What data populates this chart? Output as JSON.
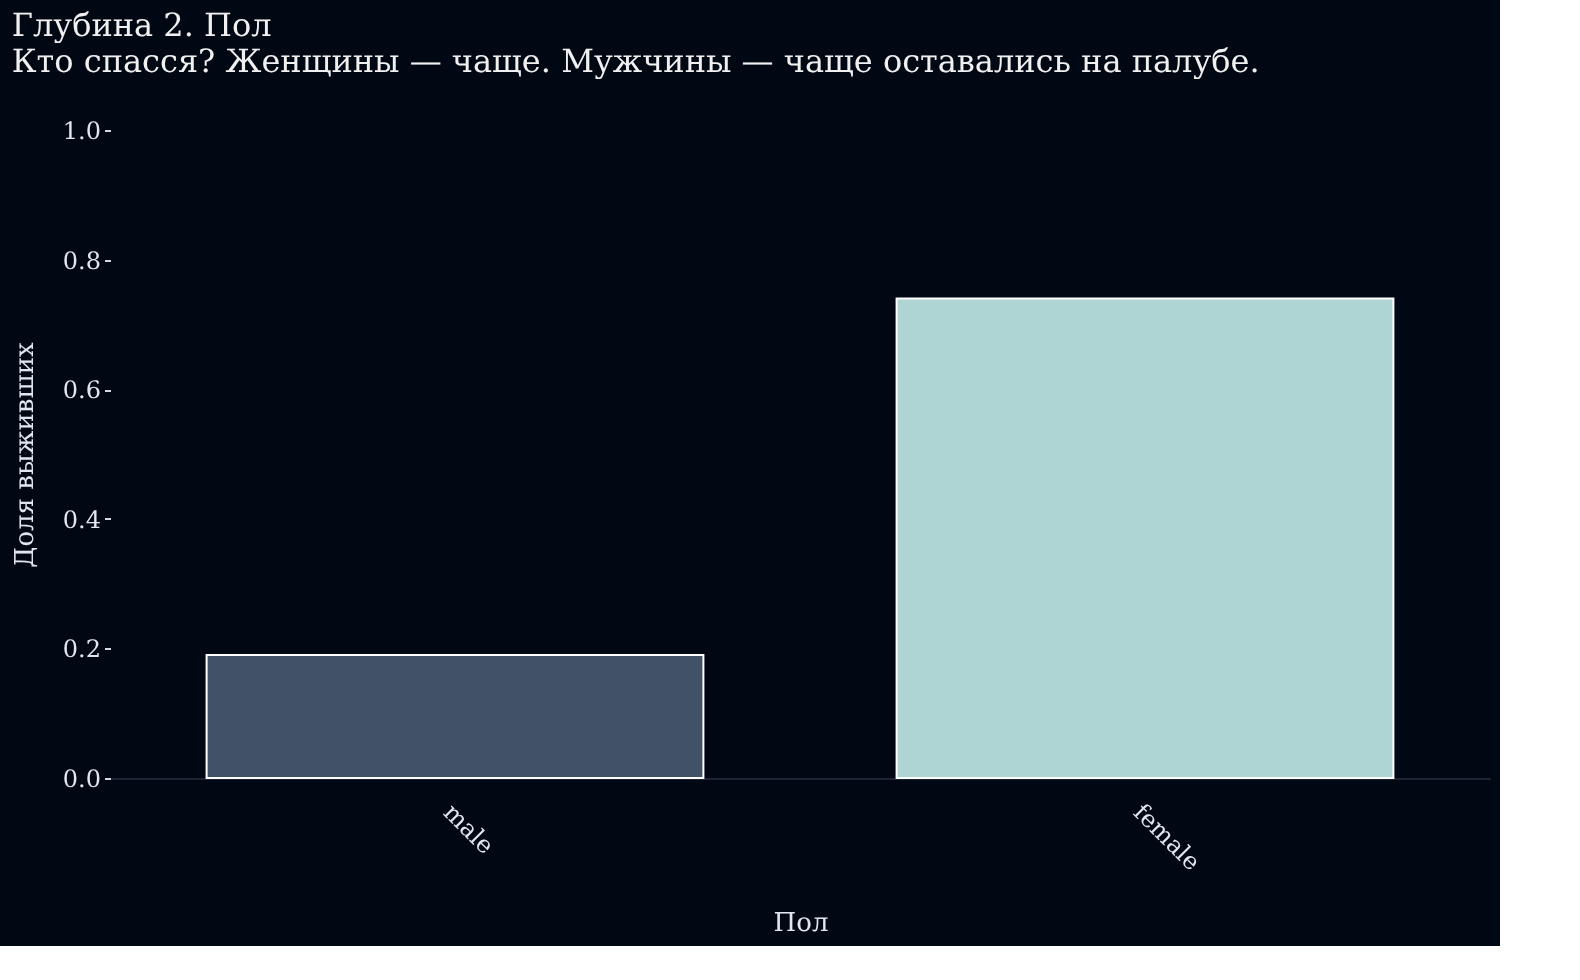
{
  "chart_data": {
    "type": "bar",
    "title": "Глубина 2. Пол",
    "subtitle": "Кто спасся? Женщины — чаще. Мужчины — чаще оставались на палубе.",
    "xlabel": "Пол",
    "ylabel": "Доля выживших",
    "categories": [
      "male",
      "female"
    ],
    "values": [
      0.19,
      0.74
    ],
    "colors": [
      "#415166",
      "#aed4d4"
    ],
    "ylim": [
      0,
      1
    ],
    "yticks": [
      {
        "value": 0,
        "label": "0.0"
      },
      0.2,
      0.4,
      0.6,
      0.8,
      {
        "value": 1,
        "label": "1.0"
      }
    ],
    "grid": false
  }
}
